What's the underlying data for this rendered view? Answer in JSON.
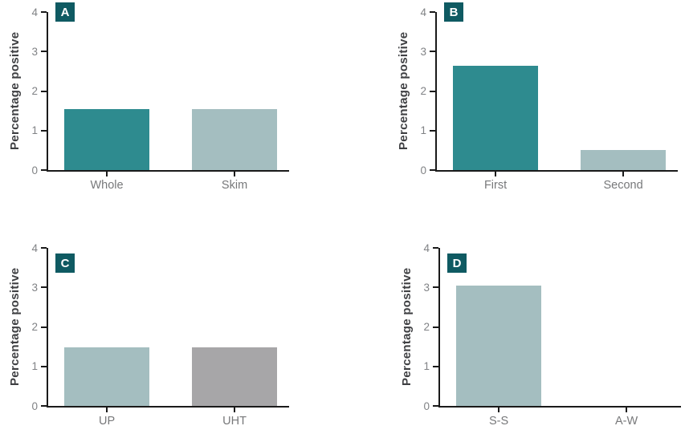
{
  "figure": {
    "background": "#ffffff",
    "panel_count": 4
  },
  "colors": {
    "teal": "#2E8B8F",
    "light_blue_gray": "#A4BEC0",
    "gray": "#A7A6A8",
    "badge_background": "#0F5A62",
    "badge_text": "#FFFFFF",
    "axis_line": "#1A1A1A",
    "tick_label": "#808285",
    "category_label": "#77787A",
    "axis_title": "#3F4043"
  },
  "chart_data": [
    {
      "type": "bar",
      "panel_label": "A",
      "title": "",
      "xlabel": "",
      "ylabel": "Percentage positive",
      "categories": [
        "Whole",
        "Skim"
      ],
      "values": [
        1.55,
        1.55
      ],
      "bar_colors": [
        "#2E8B8F",
        "#A4BEC0"
      ],
      "ylim": [
        0,
        4
      ],
      "yticks": [
        0,
        1,
        2,
        3,
        4
      ],
      "grid": false,
      "legend": null
    },
    {
      "type": "bar",
      "panel_label": "B",
      "title": "",
      "xlabel": "",
      "ylabel": "Percentage positive",
      "categories": [
        "First",
        "Second"
      ],
      "values": [
        2.65,
        0.5
      ],
      "bar_colors": [
        "#2E8B8F",
        "#A4BEC0"
      ],
      "ylim": [
        0,
        4
      ],
      "yticks": [
        0,
        1,
        2,
        3,
        4
      ],
      "grid": false,
      "legend": null
    },
    {
      "type": "bar",
      "panel_label": "C",
      "title": "",
      "xlabel": "",
      "ylabel": "Percentage positive",
      "categories": [
        "UP",
        "UHT"
      ],
      "values": [
        1.48,
        1.48
      ],
      "bar_colors": [
        "#A4BEC0",
        "#A7A6A8"
      ],
      "ylim": [
        0,
        4
      ],
      "yticks": [
        0,
        1,
        2,
        3,
        4
      ],
      "grid": false,
      "legend": null
    },
    {
      "type": "bar",
      "panel_label": "D",
      "title": "",
      "xlabel": "",
      "ylabel": "Percentage positive",
      "categories": [
        "S-S",
        "A-W"
      ],
      "values": [
        3.05,
        0
      ],
      "bar_colors": [
        "#A4BEC0",
        "#A4BEC0"
      ],
      "ylim": [
        0,
        4
      ],
      "yticks": [
        0,
        1,
        2,
        3,
        4
      ],
      "grid": false,
      "legend": null
    }
  ]
}
